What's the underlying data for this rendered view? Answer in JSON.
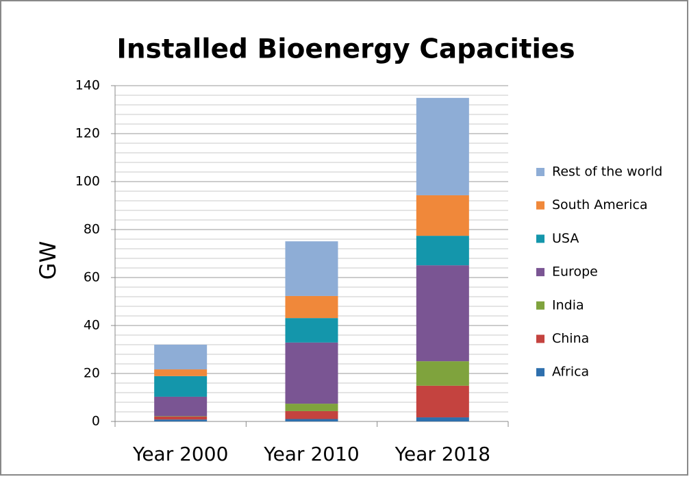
{
  "chart_data": {
    "type": "stacked_bar",
    "title": "Installed Bioenergy Capacities",
    "y_label": "GW",
    "categories": [
      "Year 2000",
      "Year 2010",
      "Year 2018"
    ],
    "series": [
      {
        "name": "Africa",
        "color": "#2e6fad",
        "values": [
          0.8,
          1,
          1.7
        ]
      },
      {
        "name": "China",
        "color": "#c4433f",
        "values": [
          1.2,
          3.3,
          13.2
        ]
      },
      {
        "name": "India",
        "color": "#7fa33d",
        "values": [
          0.2,
          3.1,
          10.2
        ]
      },
      {
        "name": "Europe",
        "color": "#7a5593",
        "values": [
          8.1,
          25.5,
          40
        ]
      },
      {
        "name": "USA",
        "color": "#1496ab",
        "values": [
          8.6,
          10.2,
          12.3
        ]
      },
      {
        "name": "South America",
        "color": "#f0883a",
        "values": [
          2.8,
          9.2,
          16.9
        ]
      },
      {
        "name": "Rest of the world",
        "color": "#8eadd6",
        "values": [
          10.3,
          22.8,
          40.6
        ]
      }
    ],
    "ylim": [
      0,
      140
    ],
    "yticks": [
      0,
      20,
      40,
      60,
      80,
      100,
      120,
      140
    ],
    "grid": true,
    "minor_grid_step": 4,
    "legend": "right"
  }
}
